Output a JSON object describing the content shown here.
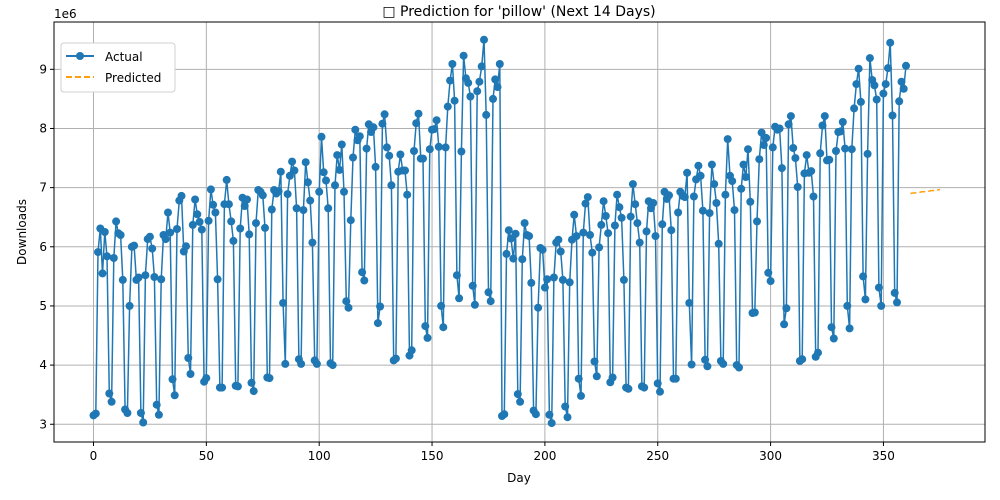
{
  "chart_data": {
    "type": "line",
    "title": "□ Prediction for 'pillow' (Next 14 Days)",
    "title_icon": "missing-glyph-box",
    "xlabel": "Day",
    "ylabel": "Downloads",
    "y_offset_label": "1e6",
    "xlim": [
      -17.5,
      395
    ],
    "ylim": [
      2.7,
      9.8
    ],
    "y_scale": 1000000,
    "xticks": [
      0,
      50,
      100,
      150,
      200,
      250,
      300,
      350
    ],
    "yticks": [
      3,
      4,
      5,
      6,
      7,
      8,
      9
    ],
    "grid": true,
    "legend_position": "upper left",
    "legend": [
      {
        "label": "Actual",
        "color": "#1f77b4",
        "style": "solid-with-markers"
      },
      {
        "label": "Predicted",
        "color": "#ff9f0e",
        "style": "dashed"
      }
    ],
    "series": [
      {
        "name": "Actual",
        "color": "#1f77b4",
        "x_start": 0,
        "values_millions": [
          3.15,
          3.18,
          5.91,
          6.31,
          5.55,
          6.25,
          5.84,
          3.52,
          3.38,
          5.81,
          6.43,
          6.23,
          6.2,
          5.44,
          3.25,
          3.19,
          5.0,
          6.0,
          6.02,
          5.44,
          5.48,
          3.19,
          3.03,
          5.52,
          6.13,
          6.17,
          5.97,
          5.49,
          3.33,
          3.16,
          5.45,
          6.2,
          6.13,
          6.58,
          6.24,
          3.76,
          3.49,
          6.3,
          6.78,
          6.86,
          5.92,
          6.01,
          4.12,
          3.85,
          6.37,
          6.8,
          6.55,
          6.42,
          6.29,
          3.72,
          3.78,
          6.44,
          6.97,
          6.71,
          6.58,
          5.45,
          3.62,
          3.62,
          6.72,
          7.13,
          6.72,
          6.43,
          6.1,
          3.65,
          3.64,
          6.31,
          6.83,
          6.69,
          6.8,
          6.21,
          3.7,
          3.56,
          6.4,
          6.96,
          6.93,
          6.87,
          6.32,
          3.79,
          3.78,
          6.63,
          6.96,
          6.9,
          6.94,
          7.27,
          5.05,
          4.02,
          6.89,
          7.2,
          7.44,
          7.29,
          6.65,
          4.1,
          4.02,
          6.62,
          7.43,
          7.09,
          6.78,
          6.07,
          4.08,
          4.02,
          6.93,
          7.86,
          7.26,
          7.12,
          6.65,
          4.03,
          4.0,
          7.04,
          7.55,
          7.3,
          7.73,
          6.93,
          5.08,
          4.97,
          6.45,
          7.51,
          7.98,
          7.8,
          7.87,
          5.57,
          5.43,
          7.66,
          8.07,
          7.94,
          8.02,
          7.35,
          4.71,
          4.99,
          8.08,
          8.24,
          7.68,
          7.54,
          7.04,
          4.08,
          4.11,
          7.27,
          7.56,
          7.29,
          7.29,
          6.88,
          4.16,
          4.25,
          7.62,
          8.09,
          8.25,
          7.49,
          7.49,
          4.66,
          4.46,
          7.65,
          7.98,
          7.99,
          8.14,
          7.69,
          5.0,
          4.64,
          7.68,
          8.37,
          8.81,
          9.09,
          8.47,
          5.52,
          5.13,
          7.61,
          9.23,
          8.85,
          8.77,
          8.54,
          5.34,
          5.02,
          8.63,
          8.79,
          9.05,
          9.5,
          8.23,
          5.23,
          5.08,
          8.5,
          8.83,
          8.7,
          9.09,
          3.14,
          3.17,
          5.88,
          6.28,
          6.14,
          5.8,
          6.22,
          3.51,
          3.38,
          5.79,
          6.4,
          6.2,
          6.18,
          5.39,
          3.23,
          3.17,
          4.97,
          5.98,
          5.95,
          5.31,
          5.45,
          3.16,
          3.02,
          5.48,
          6.07,
          6.12,
          5.92,
          5.44,
          3.3,
          3.12,
          5.4,
          6.12,
          6.54,
          6.18,
          3.77,
          3.48,
          6.24,
          6.73,
          6.84,
          6.2,
          5.9,
          4.06,
          3.81,
          5.99,
          6.37,
          6.77,
          6.52,
          6.23,
          3.71,
          3.79,
          6.36,
          6.88,
          6.67,
          6.49,
          5.44,
          3.62,
          3.6,
          6.51,
          7.06,
          6.72,
          6.4,
          6.07,
          3.64,
          3.62,
          6.26,
          6.77,
          6.65,
          6.74,
          6.18,
          3.69,
          3.55,
          6.38,
          6.93,
          6.81,
          6.87,
          6.28,
          3.77,
          3.77,
          6.58,
          6.93,
          6.86,
          6.84,
          7.25,
          5.05,
          4.01,
          6.85,
          7.14,
          7.37,
          7.2,
          6.61,
          4.09,
          3.98,
          6.57,
          7.39,
          7.06,
          6.74,
          6.05,
          4.07,
          4.02,
          6.88,
          7.82,
          7.2,
          7.11,
          6.62,
          4.0,
          3.96,
          6.98,
          7.39,
          7.18,
          7.65,
          6.76,
          4.88,
          4.89,
          6.43,
          7.48,
          7.93,
          7.72,
          7.84,
          5.56,
          5.42,
          7.68,
          8.03,
          7.98,
          8.0,
          7.33,
          4.69,
          4.96,
          8.07,
          8.21,
          7.67,
          7.5,
          7.01,
          4.07,
          4.1,
          7.24,
          7.55,
          7.25,
          7.28,
          6.85,
          4.14,
          4.21,
          7.58,
          8.05,
          8.21,
          7.46,
          7.47,
          4.64,
          4.45,
          7.62,
          7.94,
          7.95,
          8.11,
          7.66,
          5.0,
          4.62,
          7.65,
          8.34,
          8.75,
          9.01,
          8.45,
          5.5,
          5.11,
          7.57,
          9.19,
          8.82,
          8.73,
          8.49,
          5.31,
          5.0,
          8.59,
          8.75,
          9.02,
          9.45,
          8.22,
          5.22,
          5.06,
          8.46,
          8.79,
          8.67,
          9.06
        ]
      },
      {
        "name": "Predicted",
        "color": "#ff9f0e",
        "x": [
          362,
          363,
          364,
          365,
          366,
          367,
          368,
          369,
          370,
          371,
          372,
          373,
          374,
          375
        ],
        "values_millions": [
          6.9,
          6.91,
          6.91,
          6.92,
          6.92,
          6.93,
          6.93,
          6.94,
          6.94,
          6.95,
          6.95,
          6.96,
          6.96,
          6.97
        ]
      }
    ]
  }
}
